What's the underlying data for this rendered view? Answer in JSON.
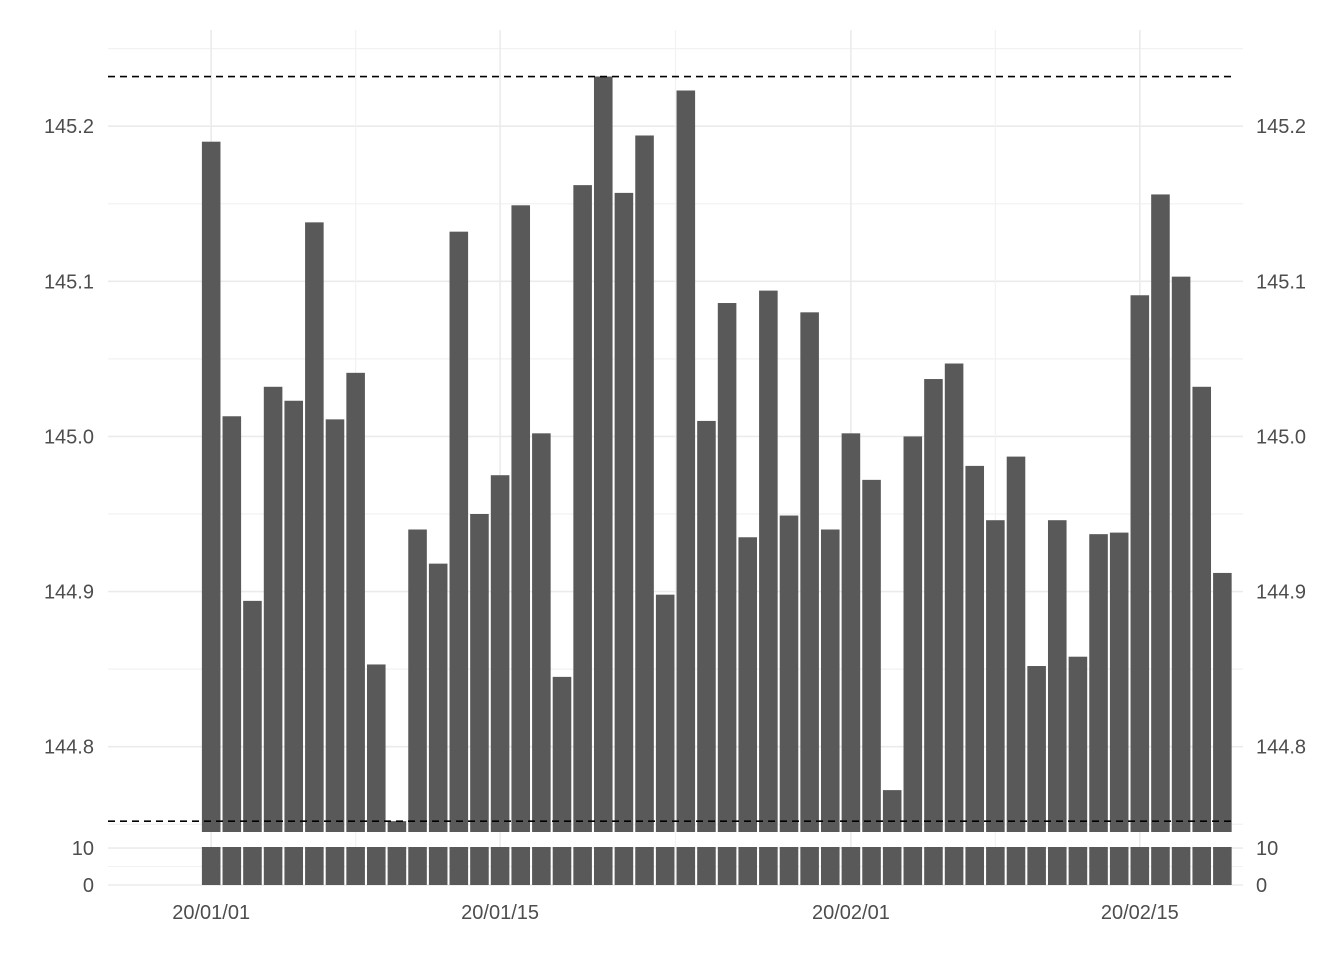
{
  "chart_data": {
    "type": "bar",
    "title": "",
    "xlabel": "",
    "ylabel": "",
    "x_tick_labels": [
      "20/01/01",
      "20/01/15",
      "20/02/01",
      "20/02/15"
    ],
    "x_tick_dates": [
      "2020-01-01",
      "2020-01-15",
      "2020-02-01",
      "2020-02-15"
    ],
    "xlim": [
      "2019-12-27",
      "2020-02-20"
    ],
    "y_tick_labels": [
      "144.8",
      "144.9",
      "145.0",
      "145.1",
      "145.2"
    ],
    "y_ticks": [
      144.8,
      144.9,
      145.0,
      145.1,
      145.2
    ],
    "ylim": [
      144.745,
      145.262
    ],
    "y_axis_break": true,
    "lower_segment_tick_labels": [
      "10",
      "0"
    ],
    "lower_segment_ticks": [
      10,
      0
    ],
    "secondary_y_axis": "right, mirrored",
    "grid": true,
    "reference_lines": [
      145.232,
      144.752
    ],
    "bar_color": "#595959",
    "x": [
      "2020-01-01",
      "2020-01-02",
      "2020-01-03",
      "2020-01-04",
      "2020-01-05",
      "2020-01-06",
      "2020-01-07",
      "2020-01-08",
      "2020-01-09",
      "2020-01-10",
      "2020-01-11",
      "2020-01-12",
      "2020-01-13",
      "2020-01-14",
      "2020-01-15",
      "2020-01-16",
      "2020-01-17",
      "2020-01-18",
      "2020-01-19",
      "2020-01-20",
      "2020-01-21",
      "2020-01-22",
      "2020-01-23",
      "2020-01-24",
      "2020-01-25",
      "2020-01-26",
      "2020-01-27",
      "2020-01-28",
      "2020-01-29",
      "2020-01-30",
      "2020-01-31",
      "2020-02-01",
      "2020-02-02",
      "2020-02-03",
      "2020-02-04",
      "2020-02-05",
      "2020-02-06",
      "2020-02-07",
      "2020-02-08",
      "2020-02-09",
      "2020-02-10",
      "2020-02-11",
      "2020-02-12",
      "2020-02-13",
      "2020-02-14",
      "2020-02-15",
      "2020-02-16",
      "2020-02-17",
      "2020-02-18",
      "2020-02-19"
    ],
    "values": [
      145.19,
      145.013,
      144.894,
      145.032,
      145.023,
      145.138,
      145.011,
      145.041,
      144.853,
      144.752,
      144.94,
      144.918,
      145.132,
      144.95,
      144.975,
      145.149,
      145.002,
      144.845,
      145.162,
      145.232,
      145.157,
      145.194,
      144.898,
      145.223,
      145.01,
      145.086,
      144.935,
      145.094,
      144.949,
      145.08,
      144.94,
      145.002,
      144.972,
      144.772,
      145.0,
      145.037,
      145.047,
      144.981,
      144.946,
      144.987,
      144.852,
      144.946,
      144.858,
      144.937,
      144.938,
      145.091,
      145.156,
      145.103,
      145.032,
      144.912
    ]
  }
}
